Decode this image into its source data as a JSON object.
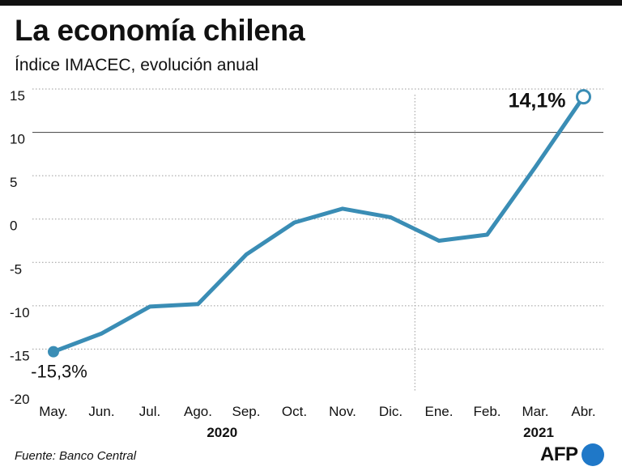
{
  "header": {
    "title": "La economía chilena",
    "subtitle": "Índice IMACEC, evolución anual"
  },
  "footer": {
    "source": "Fuente: Banco Central",
    "logo_text": "AFP"
  },
  "chart_data": {
    "type": "line",
    "title": "La economía chilena",
    "subtitle": "Índice IMACEC, evolución anual",
    "categories": [
      "May.",
      "Jun.",
      "Jul.",
      "Ago.",
      "Sep.",
      "Oct.",
      "Nov.",
      "Dic.",
      "Ene.",
      "Feb.",
      "Mar.",
      "Abr."
    ],
    "year_groups": [
      {
        "label": "2020",
        "categories": [
          "May.",
          "Jun.",
          "Jul.",
          "Ago.",
          "Sep.",
          "Oct.",
          "Nov.",
          "Dic."
        ]
      },
      {
        "label": "2021",
        "categories": [
          "Ene.",
          "Feb.",
          "Mar.",
          "Abr."
        ]
      }
    ],
    "series": [
      {
        "values": [
          -15.3,
          -13.2,
          -10.1,
          -9.8,
          -4.1,
          -0.4,
          1.2,
          0.2,
          -2.5,
          -1.8,
          6.0,
          14.1
        ]
      }
    ],
    "annotations": [
      {
        "category": "May.",
        "label": "-15,3%"
      },
      {
        "category": "Abr.",
        "label": "14,1%"
      }
    ],
    "y_ticks": [
      15,
      10,
      5,
      0,
      -5,
      -10,
      -15,
      -20
    ],
    "y_tick_labels": [
      "15",
      "10",
      "5",
      "0",
      "-5",
      "-10",
      "-15",
      "-20"
    ],
    "ylim": [
      -20,
      15
    ],
    "reference_line": 10,
    "grid": "dotted horizontal",
    "colors": {
      "line": "#3a8db5",
      "text": "#111111",
      "grid": "#9a9a9a",
      "logo": "#1f78c8"
    }
  }
}
